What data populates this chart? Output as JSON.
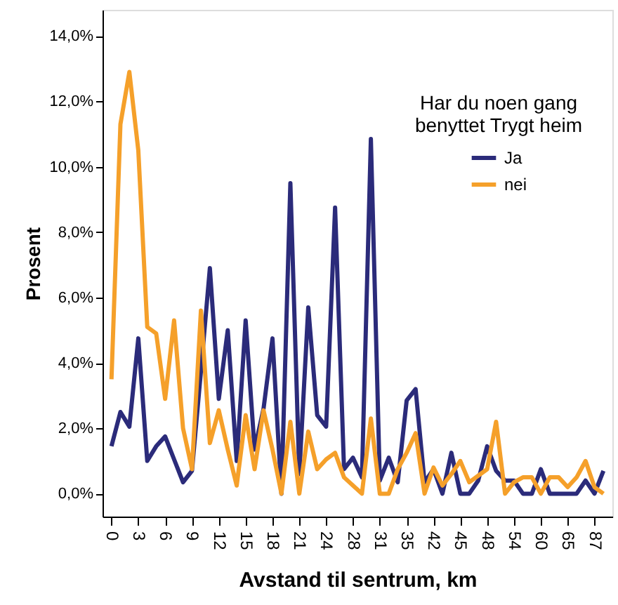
{
  "chart_data": {
    "type": "line",
    "xlabel": "Avstand til sentrum, km",
    "ylabel": "Prosent",
    "legend_title": "Har du noen gang\nbenyttet Trygt heim",
    "categories": [
      "0",
      null,
      null,
      "3",
      null,
      null,
      "6",
      null,
      null,
      "9",
      null,
      null,
      "12",
      null,
      null,
      "15",
      null,
      null,
      "18",
      null,
      null,
      "21",
      null,
      null,
      "24",
      null,
      null,
      "28",
      null,
      null,
      "31",
      null,
      null,
      "35",
      null,
      null,
      "42",
      null,
      null,
      "45",
      null,
      null,
      "48",
      null,
      null,
      "54",
      null,
      null,
      "60",
      null,
      null,
      "65",
      null,
      null,
      "87",
      null
    ],
    "series": [
      {
        "name": "Ja",
        "color": "#2b2b7a",
        "values": [
          1.45,
          2.5,
          2.05,
          4.75,
          1.0,
          1.45,
          1.75,
          1.05,
          0.35,
          0.7,
          3.75,
          6.9,
          2.9,
          5.0,
          1.0,
          5.3,
          1.35,
          2.6,
          4.75,
          0.0,
          9.5,
          0.6,
          5.7,
          2.4,
          2.05,
          8.75,
          0.75,
          1.1,
          0.5,
          10.85,
          0.4,
          1.1,
          0.35,
          2.85,
          3.2,
          0.35,
          0.75,
          0.0,
          1.25,
          0.0,
          0.0,
          0.4,
          1.45,
          0.7,
          0.4,
          0.4,
          0.0,
          0.0,
          0.75,
          0.0,
          0.0,
          0.0,
          0.0,
          0.4,
          0.0,
          0.7
        ]
      },
      {
        "name": "nei",
        "color": "#f5a02a",
        "values": [
          3.5,
          11.3,
          12.9,
          10.5,
          5.1,
          4.9,
          2.9,
          5.3,
          2.0,
          0.75,
          5.6,
          1.55,
          2.55,
          1.35,
          0.25,
          2.4,
          0.75,
          2.55,
          1.35,
          0.0,
          2.2,
          0.0,
          1.9,
          0.75,
          1.05,
          1.25,
          0.5,
          0.25,
          0.0,
          2.3,
          0.0,
          0.0,
          0.75,
          1.25,
          1.85,
          0.0,
          0.8,
          0.25,
          0.6,
          1.0,
          0.35,
          0.55,
          0.75,
          2.2,
          0.0,
          0.35,
          0.5,
          0.5,
          0.0,
          0.5,
          0.5,
          0.2,
          0.5,
          1.0,
          0.2,
          0.0
        ]
      }
    ],
    "ylim": [
      -0.7,
      14.8
    ],
    "yticks": [
      {
        "value": 0,
        "label": "0,0%"
      },
      {
        "value": 2,
        "label": "2,0%"
      },
      {
        "value": 4,
        "label": "4,0%"
      },
      {
        "value": 6,
        "label": "6,0%"
      },
      {
        "value": 8,
        "label": "8,0%"
      },
      {
        "value": 10,
        "label": "10,0%"
      },
      {
        "value": 12,
        "label": "12,0%"
      },
      {
        "value": 14,
        "label": "14,0%"
      }
    ],
    "grid": false,
    "legend": "top right",
    "marker": "none",
    "line_style": "solid"
  }
}
